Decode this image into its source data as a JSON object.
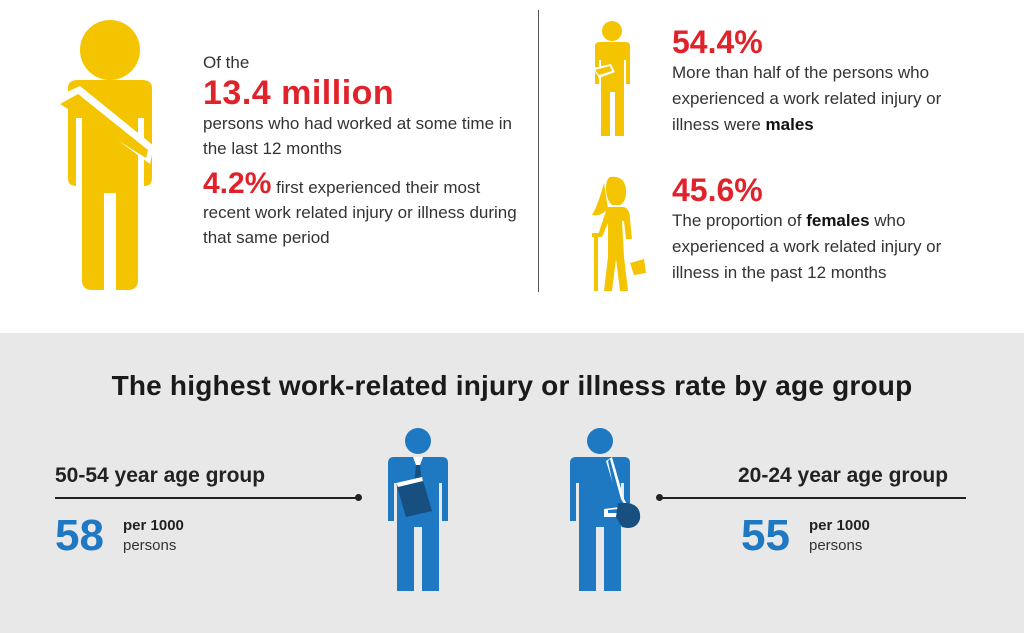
{
  "top": {
    "intro": "Of the",
    "total": "13.4 million",
    "total_desc": "persons who had worked at some time in the last 12 months",
    "first_pct": "4.2%",
    "first_desc": "first experienced their most recent work related injury or illness during that same period"
  },
  "male": {
    "pct": "54.4%",
    "text_before": "More than half of the persons who experienced a work related injury or illness were",
    "bold": "males"
  },
  "female": {
    "pct": "45.6%",
    "text_before": "The proportion of",
    "bold": "females",
    "text_after": "who experienced a work related injury or illness in the past 12 months"
  },
  "bottom": {
    "title": "The highest work-related injury or illness rate by age group",
    "left": {
      "label": "50-54 year age group",
      "value": "58",
      "unit": "per 1000",
      "unit2": "persons"
    },
    "right": {
      "label": "20-24 year age group",
      "value": "55",
      "unit": "per 1000",
      "unit2": "persons"
    }
  },
  "colors": {
    "accent_red": "#e0232b",
    "figure_yellow": "#f5c400",
    "figure_blue": "#1e78c2",
    "panel_gray": "#e8e8e8"
  },
  "icons": [
    "person-with-sling-icon",
    "male-arm-sling-icon",
    "female-crutch-icon",
    "businessman-with-folder-icon",
    "person-with-arm-sling-icon"
  ]
}
